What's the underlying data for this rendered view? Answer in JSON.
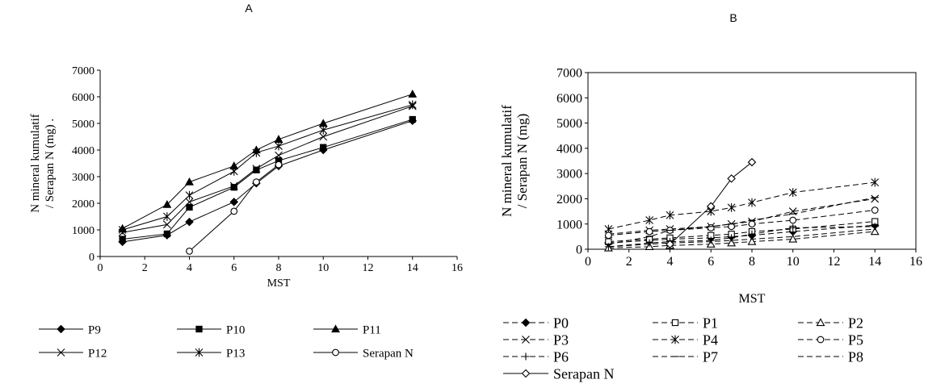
{
  "chart_data": [
    {
      "panel_label": "A",
      "type": "line",
      "xlabel": "MST",
      "ylabel_line1": "N mineral kumulatif",
      "ylabel_line2": "/ Serapan N (mg) .",
      "xlim": [
        0,
        16
      ],
      "ylim": [
        0,
        7000
      ],
      "xticks": [
        0,
        2,
        4,
        6,
        8,
        10,
        12,
        14,
        16
      ],
      "yticks": [
        0,
        1000,
        2000,
        3000,
        4000,
        5000,
        6000,
        7000
      ],
      "grid": false,
      "legend_position": "bottom",
      "series": [
        {
          "name": "P9",
          "marker": "diamond-filled",
          "x": [
            1,
            3,
            4,
            6,
            7,
            8,
            10,
            14
          ],
          "y": [
            550,
            800,
            1300,
            2050,
            2750,
            3400,
            4000,
            5100
          ]
        },
        {
          "name": "P10",
          "marker": "square-filled",
          "x": [
            1,
            3,
            4,
            6,
            7,
            8,
            10,
            14
          ],
          "y": [
            650,
            850,
            1850,
            2600,
            3250,
            3600,
            4100,
            5150
          ]
        },
        {
          "name": "P11",
          "marker": "triangle-filled",
          "x": [
            1,
            3,
            4,
            6,
            7,
            8,
            10,
            14
          ],
          "y": [
            1050,
            1950,
            2800,
            3400,
            4000,
            4400,
            5000,
            6100
          ]
        },
        {
          "name": "P12",
          "marker": "x",
          "x": [
            1,
            3,
            4,
            6,
            7,
            8,
            10,
            14
          ],
          "y": [
            900,
            1200,
            2050,
            2650,
            3300,
            3800,
            4500,
            5650
          ]
        },
        {
          "name": "P13",
          "marker": "asterisk",
          "x": [
            1,
            3,
            4,
            6,
            7,
            8,
            10,
            14
          ],
          "y": [
            1000,
            1500,
            2300,
            3200,
            3900,
            4150,
            4750,
            5700
          ]
        },
        {
          "name": "Serapan N",
          "marker": "circle-open",
          "x": [
            4,
            6,
            7,
            8
          ],
          "y": [
            200,
            1700,
            2800,
            3450
          ]
        }
      ]
    },
    {
      "panel_label": "B",
      "type": "line",
      "xlabel": "MST",
      "ylabel_line1": "N mineral kumulatif",
      "ylabel_line2": "/ Serapan N (mg)",
      "xlim": [
        0,
        16
      ],
      "ylim": [
        0,
        7000
      ],
      "xticks": [
        0,
        2,
        4,
        6,
        8,
        10,
        12,
        14,
        16
      ],
      "yticks": [
        0,
        1000,
        2000,
        3000,
        4000,
        5000,
        6000,
        7000
      ],
      "grid": false,
      "legend_position": "bottom",
      "series": [
        {
          "name": "P0",
          "marker": "diamond-filled",
          "dashed": true,
          "x": [
            1,
            3,
            4,
            6,
            7,
            8,
            10,
            14
          ],
          "y": [
            250,
            350,
            400,
            450,
            500,
            550,
            700,
            950
          ]
        },
        {
          "name": "P1",
          "marker": "square-open",
          "dashed": true,
          "x": [
            1,
            3,
            4,
            6,
            7,
            8,
            10,
            14
          ],
          "y": [
            300,
            400,
            450,
            550,
            600,
            700,
            800,
            1100
          ]
        },
        {
          "name": "P2",
          "marker": "triangle-open",
          "dashed": true,
          "x": [
            1,
            3,
            4,
            6,
            7,
            8,
            10,
            14
          ],
          "y": [
            50,
            100,
            150,
            200,
            250,
            300,
            400,
            700
          ]
        },
        {
          "name": "P3",
          "marker": "x",
          "dashed": true,
          "x": [
            1,
            3,
            4,
            6,
            7,
            8,
            10,
            14
          ],
          "y": [
            600,
            750,
            800,
            900,
            1000,
            1100,
            1500,
            2000
          ]
        },
        {
          "name": "P4",
          "marker": "asterisk",
          "dashed": true,
          "x": [
            1,
            3,
            4,
            6,
            7,
            8,
            10,
            14
          ],
          "y": [
            800,
            1150,
            1350,
            1500,
            1650,
            1850,
            2250,
            2650
          ]
        },
        {
          "name": "P5",
          "marker": "circle-open",
          "dashed": true,
          "x": [
            1,
            3,
            4,
            6,
            7,
            8,
            10,
            14
          ],
          "y": [
            550,
            700,
            750,
            850,
            900,
            1000,
            1150,
            1550
          ]
        },
        {
          "name": "P6",
          "marker": "plus",
          "dashed": true,
          "x": [
            1,
            3,
            4,
            6,
            7,
            8,
            10,
            14
          ],
          "y": [
            100,
            250,
            300,
            350,
            450,
            600,
            850,
            900
          ]
        },
        {
          "name": "P7",
          "marker": "dash",
          "dashed": true,
          "x": [
            1,
            3,
            4,
            6,
            7,
            8,
            10,
            14
          ],
          "y": [
            200,
            500,
            750,
            900,
            1000,
            1150,
            1400,
            2050
          ]
        },
        {
          "name": "P8",
          "marker": "none",
          "dashed": true,
          "x": [
            1,
            3,
            4,
            6,
            7,
            8,
            10,
            14
          ],
          "y": [
            100,
            200,
            250,
            300,
            350,
            400,
            500,
            800
          ]
        },
        {
          "name": "Serapan N",
          "marker": "diamond-open",
          "dashed": false,
          "x": [
            4,
            6,
            7,
            8
          ],
          "y": [
            200,
            1700,
            2800,
            3450
          ]
        }
      ]
    }
  ]
}
